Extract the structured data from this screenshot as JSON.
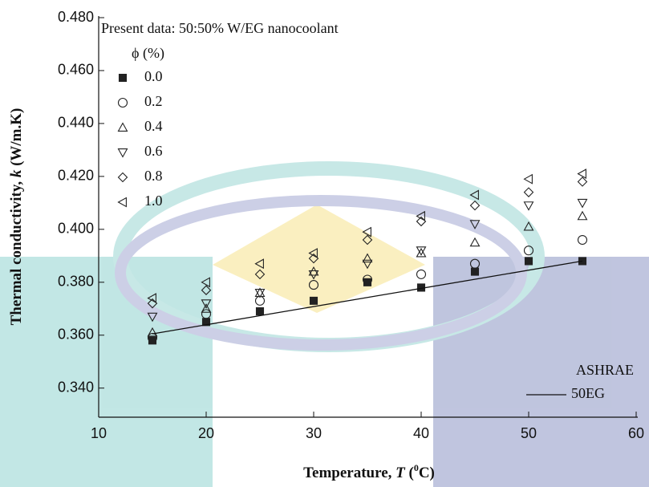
{
  "chart_data": {
    "type": "scatter",
    "x_label": {
      "prefix": "Temperature, ",
      "var": "T",
      "open": " (",
      "sup": "0",
      "suffix": "C)"
    },
    "y_label": {
      "prefix": "Thermal conductivity, ",
      "var": "k",
      "suffix": " (W/m.K)"
    },
    "legend_title": "Present data: 50:50% W/EG nanocoolant",
    "legend_subtitle": "ϕ (%)",
    "legend2_title": "ASHRAE",
    "xlim": [
      10,
      60
    ],
    "xticks": [
      10,
      20,
      30,
      40,
      50,
      60
    ],
    "ylim": [
      0.329,
      0.48
    ],
    "yticks": [
      {
        "value": 0.34,
        "label": "0.340"
      },
      {
        "value": 0.36,
        "label": "0.360"
      },
      {
        "value": 0.38,
        "label": "0.380"
      },
      {
        "value": 0.4,
        "label": "0.400"
      },
      {
        "value": 0.42,
        "label": "0.420"
      },
      {
        "value": 0.44,
        "label": "0.440"
      },
      {
        "value": 0.46,
        "label": "0.460"
      },
      {
        "value": 0.48,
        "label": "0.480"
      }
    ],
    "x": [
      15,
      20,
      25,
      30,
      35,
      40,
      45,
      50,
      55
    ],
    "series": [
      {
        "name": "0.0",
        "marker": "square",
        "color": "#222",
        "values": [
          0.358,
          0.365,
          0.369,
          0.373,
          0.38,
          0.378,
          0.384,
          0.388,
          0.388
        ]
      },
      {
        "name": "0.2",
        "marker": "circle",
        "color": "#222",
        "values": [
          0.359,
          0.368,
          0.373,
          0.379,
          0.381,
          0.383,
          0.387,
          0.392,
          0.396
        ]
      },
      {
        "name": "0.4",
        "marker": "triangle-up",
        "color": "#222",
        "values": [
          0.361,
          0.37,
          0.376,
          0.384,
          0.389,
          0.391,
          0.395,
          0.401,
          0.405
        ]
      },
      {
        "name": "0.6",
        "marker": "triangle-down",
        "color": "#222",
        "values": [
          0.367,
          0.372,
          0.376,
          0.383,
          0.387,
          0.392,
          0.402,
          0.409,
          0.41
        ]
      },
      {
        "name": "0.8",
        "marker": "diamond",
        "color": "#222",
        "values": [
          0.372,
          0.377,
          0.383,
          0.389,
          0.396,
          0.403,
          0.409,
          0.414,
          0.418
        ]
      },
      {
        "name": "1.0",
        "marker": "triangle-left",
        "color": "#222",
        "values": [
          0.374,
          0.38,
          0.387,
          0.391,
          0.399,
          0.405,
          0.413,
          0.419,
          0.421
        ]
      }
    ],
    "line_series": {
      "name": "50EG",
      "color": "#111",
      "x": [
        15,
        55
      ],
      "values": [
        0.3605,
        0.388
      ]
    }
  }
}
